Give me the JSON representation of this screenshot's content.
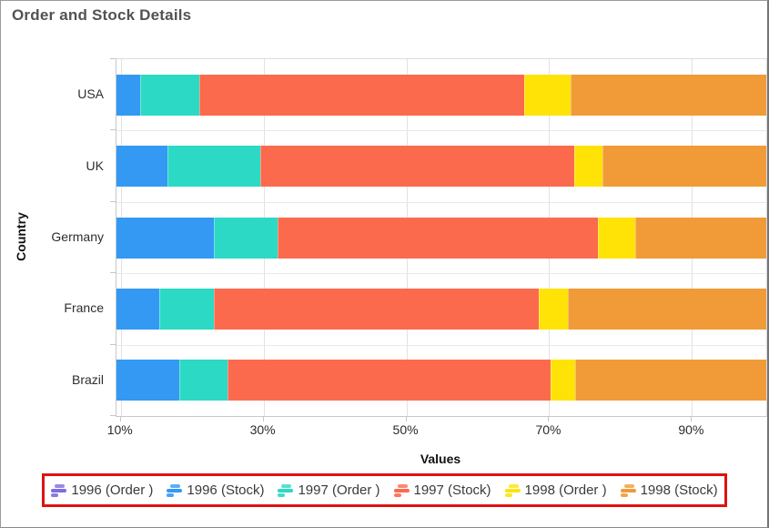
{
  "title": "Order and Stock Details",
  "chart_data": {
    "type": "bar",
    "variant": "horizontal-stacked-100",
    "title": "Order and Stock Details",
    "xlabel": "Values",
    "ylabel": "Country",
    "grid": "on",
    "legend_position": "bottom",
    "axis_visible_range": [
      9.4,
      100.4
    ],
    "x_ticks": [
      {
        "value": 10,
        "label": "10%"
      },
      {
        "value": 30,
        "label": "30%"
      },
      {
        "value": 50,
        "label": "50%"
      },
      {
        "value": 70,
        "label": "70%"
      },
      {
        "value": 90,
        "label": "90%"
      }
    ],
    "categories": [
      "USA",
      "UK",
      "Germany",
      "France",
      "Brazil"
    ],
    "series": [
      {
        "name": "1996 (Order )",
        "color": "#7e6ce0",
        "visible_in_plot": false
      },
      {
        "name": "1996 (Stock)",
        "color": "#3499f3",
        "visible_in_plot": true
      },
      {
        "name": "1997 (Order )",
        "color": "#2cd9c4",
        "visible_in_plot": true
      },
      {
        "name": "1997 (Stock)",
        "color": "#fb6a4d",
        "visible_in_plot": true
      },
      {
        "name": "1998 (Order )",
        "color": "#ffe306",
        "visible_in_plot": true
      },
      {
        "name": "1998 (Stock)",
        "color": "#f09b37",
        "visible_in_plot": true
      }
    ],
    "bars_cumulative_percent": [
      {
        "category": "USA",
        "boundaries": [
          9.4,
          12.7,
          21.0,
          66.5,
          73.0,
          100.4
        ]
      },
      {
        "category": "UK",
        "boundaries": [
          9.4,
          16.6,
          29.5,
          73.5,
          77.5,
          100.4
        ]
      },
      {
        "category": "Germany",
        "boundaries": [
          9.4,
          23.0,
          31.9,
          76.8,
          82.1,
          100.4
        ]
      },
      {
        "category": "France",
        "boundaries": [
          9.4,
          15.4,
          23.0,
          68.6,
          72.6,
          100.4
        ]
      },
      {
        "category": "Brazil",
        "boundaries": [
          9.4,
          18.2,
          24.9,
          70.2,
          73.6,
          100.4
        ]
      }
    ]
  },
  "annotation": {
    "legend_highlight_color": "#e01111"
  }
}
